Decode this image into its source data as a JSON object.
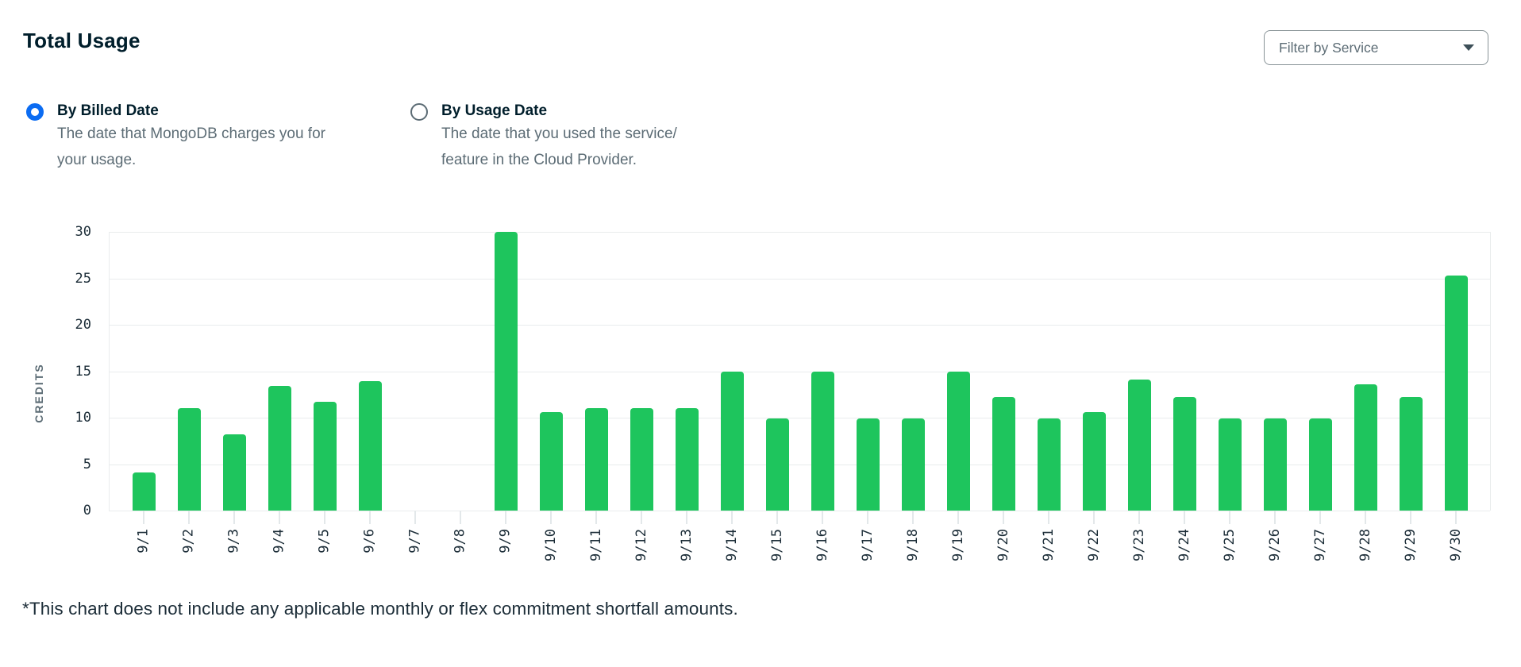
{
  "header": {
    "title": "Total Usage",
    "filter_dropdown": {
      "label": "Filter by Service"
    }
  },
  "radio_options": [
    {
      "label": "By Billed Date",
      "selected": true,
      "description_lines": [
        "The date that MongoDB charges you for",
        "your usage."
      ]
    },
    {
      "label": "By Usage Date",
      "selected": false,
      "description_lines": [
        "The date that you used the service/",
        "feature in the Cloud Provider."
      ]
    }
  ],
  "chart_data": {
    "type": "bar",
    "title": "Total Usage",
    "xlabel": "",
    "ylabel": "CREDITS",
    "ylim": [
      0,
      30
    ],
    "yticks": [
      0,
      5,
      10,
      15,
      20,
      25,
      30
    ],
    "grid": true,
    "legend": false,
    "bar_color": "#1EC55D",
    "categories": [
      "9/1",
      "9/2",
      "9/3",
      "9/4",
      "9/5",
      "9/6",
      "9/7",
      "9/8",
      "9/9",
      "9/10",
      "9/11",
      "9/12",
      "9/13",
      "9/14",
      "9/15",
      "9/16",
      "9/17",
      "9/18",
      "9/19",
      "9/20",
      "9/21",
      "9/22",
      "9/23",
      "9/24",
      "9/25",
      "9/26",
      "9/27",
      "9/28",
      "9/29",
      "9/30"
    ],
    "values": [
      4.1,
      11,
      8.2,
      13.4,
      11.7,
      13.9,
      0,
      0,
      30,
      10.6,
      11,
      11,
      11,
      15,
      9.9,
      15,
      9.9,
      9.9,
      15,
      12.2,
      9.9,
      10.6,
      14.1,
      12.2,
      9.9,
      9.9,
      9.9,
      13.6,
      12.2,
      25.3
    ]
  },
  "footnote": "*This chart does not include any applicable monthly or flex commitment shortfall amounts.",
  "colors": {
    "bar_green": "#1EC55D",
    "radio_blue": "#0B6CF2",
    "text_dark": "#001E2B",
    "text_gray": "#5C6C75",
    "gridline": "#E9ECED"
  }
}
